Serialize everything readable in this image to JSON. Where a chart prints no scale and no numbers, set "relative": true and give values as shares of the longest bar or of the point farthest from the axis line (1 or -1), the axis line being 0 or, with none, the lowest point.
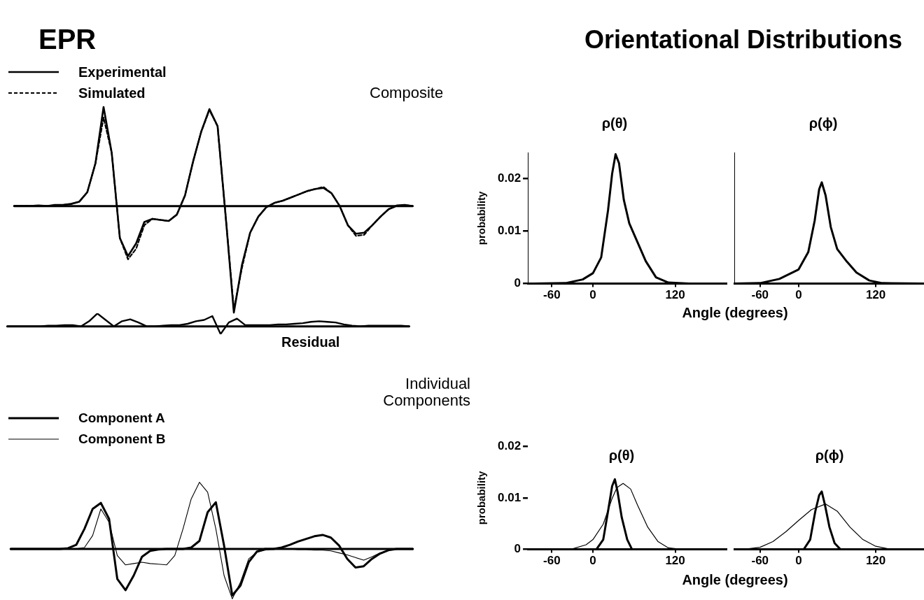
{
  "chart_data": [
    {
      "type": "line",
      "title": "EPR",
      "annotations": [
        "Composite"
      ],
      "relative": true,
      "legend": "top left",
      "marker": "none",
      "grid": false,
      "categories": [
        null,
        null,
        null,
        null,
        null,
        null,
        null,
        null,
        null,
        null,
        null,
        null,
        null,
        null,
        null,
        null,
        null,
        null,
        null,
        null,
        null,
        null,
        null,
        null,
        null,
        null,
        null,
        null,
        null,
        null,
        null,
        null,
        null,
        null,
        null,
        null,
        null,
        null,
        null,
        null,
        null,
        null,
        null,
        null,
        null,
        null,
        null,
        null,
        null,
        null
      ],
      "series": [
        {
          "name": "Experimental",
          "color": "#000000",
          "line_style": "solid",
          "values": [
            0,
            0,
            0,
            0.005,
            0,
            0.01,
            0.01,
            0.02,
            0.04,
            0.13,
            0.4,
            0.93,
            0.5,
            -0.3,
            -0.47,
            -0.35,
            -0.15,
            -0.12,
            -0.13,
            -0.14,
            -0.08,
            0.1,
            0.42,
            0.7,
            0.91,
            0.75,
            -0.1,
            -1,
            -0.55,
            -0.25,
            -0.1,
            -0.01,
            0.03,
            0.05,
            0.08,
            0.11,
            0.14,
            0.16,
            0.17,
            0.12,
            0,
            -0.18,
            -0.26,
            -0.25,
            -0.18,
            -0.1,
            -0.03,
            0.005,
            0.01,
            0
          ]
        },
        {
          "name": "Simulated",
          "color": "#000000",
          "line_style": "dashed",
          "values": [
            0,
            0,
            0,
            0,
            0,
            0,
            0.01,
            0.02,
            0.04,
            0.13,
            0.4,
            0.83,
            0.5,
            -0.3,
            -0.5,
            -0.4,
            -0.18,
            -0.12,
            -0.13,
            -0.14,
            -0.08,
            0.1,
            0.42,
            0.7,
            0.9,
            0.75,
            -0.1,
            -0.97,
            -0.58,
            -0.25,
            -0.1,
            -0.01,
            0.03,
            0.05,
            0.08,
            0.11,
            0.14,
            0.16,
            0.18,
            0.12,
            0,
            -0.18,
            -0.28,
            -0.27,
            -0.18,
            -0.1,
            -0.03,
            0,
            0.01,
            0
          ]
        }
      ]
    },
    {
      "type": "line",
      "annotations": [
        "Residual"
      ],
      "relative": true,
      "marker": "none",
      "grid": false,
      "categories": [
        null,
        null,
        null,
        null,
        null,
        null,
        null,
        null,
        null,
        null,
        null,
        null,
        null,
        null,
        null,
        null,
        null,
        null,
        null,
        null,
        null,
        null,
        null,
        null,
        null,
        null,
        null,
        null,
        null,
        null,
        null,
        null,
        null,
        null,
        null,
        null,
        null,
        null,
        null,
        null,
        null,
        null,
        null,
        null,
        null,
        null,
        null,
        null,
        null,
        null
      ],
      "series": [
        {
          "color": "#000000",
          "values": [
            0,
            0,
            0,
            0,
            0,
            0.05,
            0.05,
            0.1,
            0.1,
            0,
            0.4,
            1,
            0.5,
            0,
            0.4,
            0.55,
            0.3,
            0,
            0,
            0.05,
            0.1,
            0.1,
            0.2,
            0.4,
            0.5,
            0.8,
            -0.6,
            0.3,
            0.6,
            0.1,
            0.1,
            0.1,
            0.1,
            0.15,
            0.15,
            0.2,
            0.25,
            0.35,
            0.4,
            0.35,
            0.3,
            0.15,
            0.05,
            0,
            0.05,
            0.05,
            0.05,
            0.05,
            0.05,
            0
          ]
        }
      ]
    },
    {
      "type": "line",
      "title": "Orientational Distributions",
      "subtitle": "ρ(θ)",
      "xlabel": "Angle (degrees)",
      "ylabel": "probability",
      "marker": "none",
      "grid": false,
      "xlim": [
        -95,
        195
      ],
      "xticks": [
        -60,
        0,
        120
      ],
      "ylim": [
        0,
        0.025
      ],
      "yticks": [
        0,
        0.01,
        0.02
      ],
      "series": [
        {
          "color": "#000000",
          "x": [
            -95,
            -40,
            -15,
            0,
            12,
            22,
            28,
            33,
            38,
            45,
            53,
            63,
            77,
            92,
            110,
            140,
            195
          ],
          "values": [
            0,
            0.0001,
            0.0008,
            0.002,
            0.005,
            0.014,
            0.021,
            0.0247,
            0.023,
            0.016,
            0.0115,
            0.0085,
            0.0043,
            0.0012,
            0.0002,
            0,
            0
          ]
        }
      ]
    },
    {
      "type": "line",
      "title": "ρ(ϕ)",
      "tick_labels": "x",
      "marker": "none",
      "grid": false,
      "xlim": [
        -100,
        195
      ],
      "xticks": [
        -60,
        0,
        120
      ],
      "ylim": [
        0,
        0.025
      ],
      "yticks": [
        0,
        0.01,
        0.02
      ],
      "series": [
        {
          "color": "#000000",
          "x": [
            -100,
            -60,
            -30,
            0,
            15,
            25,
            32,
            36,
            42,
            50,
            60,
            75,
            90,
            110,
            130,
            195
          ],
          "values": [
            0,
            0.0001,
            0.0009,
            0.0027,
            0.006,
            0.012,
            0.018,
            0.0193,
            0.0168,
            0.0108,
            0.0066,
            0.0042,
            0.0021,
            0.0006,
            0.0001,
            0
          ]
        }
      ]
    },
    {
      "type": "line",
      "annotations": [
        "Individual Components"
      ],
      "relative": true,
      "legend": "top left",
      "marker": "none",
      "grid": false,
      "categories": [
        null,
        null,
        null,
        null,
        null,
        null,
        null,
        null,
        null,
        null,
        null,
        null,
        null,
        null,
        null,
        null,
        null,
        null,
        null,
        null,
        null,
        null,
        null,
        null,
        null,
        null,
        null,
        null,
        null,
        null,
        null,
        null,
        null,
        null,
        null,
        null,
        null,
        null,
        null,
        null,
        null,
        null,
        null,
        null,
        null,
        null,
        null,
        null,
        null,
        null
      ],
      "series": [
        {
          "name": "Component A",
          "color": "#000000",
          "values": [
            0,
            0,
            0,
            0,
            0,
            0,
            0,
            0.01,
            0.06,
            0.3,
            0.6,
            0.69,
            0.45,
            -0.45,
            -0.62,
            -0.4,
            -0.12,
            -0.03,
            -0.01,
            0,
            0,
            0,
            0.02,
            0.12,
            0.55,
            0.7,
            0.05,
            -0.7,
            -0.55,
            -0.2,
            -0.04,
            0,
            0,
            0.02,
            0.06,
            0.11,
            0.15,
            0.19,
            0.21,
            0.17,
            0.05,
            -0.15,
            -0.28,
            -0.26,
            -0.15,
            -0.07,
            -0.02,
            0,
            0,
            0
          ]
        },
        {
          "name": "Component B",
          "color": "#000000",
          "values": [
            0,
            0,
            0,
            0,
            0,
            0,
            0,
            0,
            0,
            0.02,
            0.2,
            0.6,
            0.4,
            -0.1,
            -0.24,
            -0.22,
            -0.2,
            -0.22,
            -0.23,
            -0.24,
            -0.1,
            0.3,
            0.75,
            1,
            0.85,
            0.3,
            -0.4,
            -0.75,
            -0.5,
            -0.15,
            -0.05,
            -0.02,
            0,
            0,
            0,
            -0.01,
            -0.01,
            -0.02,
            -0.02,
            -0.03,
            -0.06,
            -0.09,
            -0.13,
            -0.17,
            -0.12,
            -0.06,
            -0.02,
            0,
            0,
            0
          ]
        }
      ]
    },
    {
      "type": "line",
      "title": "ρ(θ)",
      "xlabel": "Angle (degrees)",
      "ylabel": "probability",
      "marker": "none",
      "grid": false,
      "xlim": [
        -95,
        195
      ],
      "xticks": [
        -60,
        0,
        120
      ],
      "ylim": [
        0,
        0.02
      ],
      "yticks": [
        0,
        0.01,
        0.02
      ],
      "series": [
        {
          "color": "#000000",
          "x": [
            -95,
            5,
            15,
            22,
            28,
            32,
            36,
            42,
            50,
            57,
            195
          ],
          "values": [
            0,
            0,
            0.0019,
            0.0074,
            0.0123,
            0.0136,
            0.0111,
            0.0062,
            0.0019,
            0,
            0
          ]
        },
        {
          "color": "#000000",
          "x": [
            -95,
            -30,
            -10,
            0,
            15,
            28,
            35,
            44,
            55,
            65,
            80,
            95,
            110,
            130,
            195
          ],
          "values": [
            0,
            0.0001,
            0.0009,
            0.0019,
            0.0049,
            0.0099,
            0.012,
            0.0128,
            0.0117,
            0.0086,
            0.0043,
            0.0015,
            0.0003,
            0,
            0
          ]
        }
      ]
    },
    {
      "type": "line",
      "title": "ρ(ϕ)",
      "tick_labels": "x",
      "marker": "none",
      "grid": false,
      "xlim": [
        -100,
        195
      ],
      "xticks": [
        -60,
        0,
        120
      ],
      "ylim": [
        0,
        0.02
      ],
      "yticks": [
        0,
        0.01,
        0.02
      ],
      "series": [
        {
          "color": "#000000",
          "x": [
            -100,
            8,
            18,
            26,
            32,
            36,
            41,
            48,
            56,
            65,
            195
          ],
          "values": [
            0,
            0,
            0.0019,
            0.0074,
            0.0105,
            0.0112,
            0.0086,
            0.0043,
            0.0012,
            0,
            0
          ]
        },
        {
          "color": "#000000",
          "x": [
            -100,
            -80,
            -60,
            -40,
            -20,
            0,
            20,
            42,
            60,
            80,
            100,
            120,
            140,
            195
          ],
          "values": [
            0,
            0.0001,
            0.0004,
            0.0015,
            0.0034,
            0.0056,
            0.0077,
            0.0088,
            0.0074,
            0.0043,
            0.0019,
            0.0006,
            0.0001,
            0
          ]
        }
      ]
    }
  ]
}
